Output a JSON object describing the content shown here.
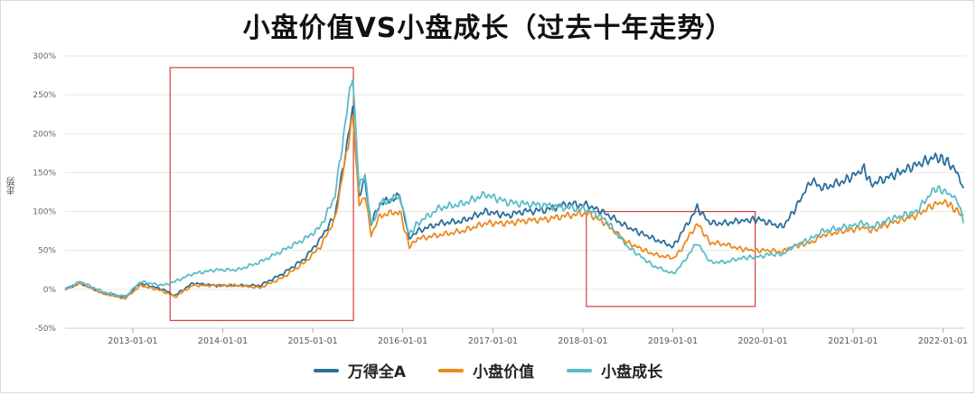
{
  "chart_data": {
    "type": "line",
    "title": "小盘价值VS小盘成长（过去十年走势）",
    "ylabel": "走势",
    "xlabel": "",
    "ylim": [
      -50,
      300
    ],
    "yticks": [
      -50,
      0,
      50,
      100,
      150,
      200,
      250,
      300
    ],
    "ytick_labels": [
      "-50%",
      "0%",
      "50%",
      "100%",
      "150%",
      "200%",
      "250%",
      "300%"
    ],
    "xticks": [
      "2013-01-01",
      "2014-01-01",
      "2015-01-01",
      "2016-01-01",
      "2017-01-01",
      "2018-01-01",
      "2019-01-01",
      "2020-01-01",
      "2021-01-01",
      "2022-01-01"
    ],
    "xlim": [
      "2012-04-01",
      "2022-04-01"
    ],
    "grid": true,
    "legend_position": "bottom",
    "highlight_boxes": [
      {
        "x": [
          "2013-06-01",
          "2015-06-15"
        ],
        "y": [
          -40,
          285
        ]
      },
      {
        "x": [
          "2018-01-15",
          "2019-12-01"
        ],
        "y": [
          -22,
          100
        ]
      }
    ],
    "series": [
      {
        "name": "万得全A",
        "color": "#2a6e9c",
        "x": [
          "2012-04-01",
          "2012-06-01",
          "2012-09-01",
          "2012-12-01",
          "2013-02-01",
          "2013-05-01",
          "2013-06-20",
          "2013-09-01",
          "2013-12-01",
          "2014-03-01",
          "2014-06-01",
          "2014-09-01",
          "2014-12-01",
          "2015-02-01",
          "2015-04-01",
          "2015-06-12",
          "2015-07-08",
          "2015-08-01",
          "2015-08-26",
          "2015-10-01",
          "2015-12-20",
          "2016-01-28",
          "2016-03-01",
          "2016-06-01",
          "2016-09-01",
          "2016-12-01",
          "2017-03-01",
          "2017-05-01",
          "2017-08-01",
          "2017-11-01",
          "2018-01-20",
          "2018-04-01",
          "2018-07-01",
          "2018-10-15",
          "2019-01-03",
          "2019-02-01",
          "2019-04-10",
          "2019-06-01",
          "2019-08-01",
          "2019-10-01",
          "2019-12-15",
          "2020-02-01",
          "2020-03-20",
          "2020-05-01",
          "2020-07-15",
          "2020-09-01",
          "2020-12-01",
          "2021-02-15",
          "2021-03-15",
          "2021-06-01",
          "2021-09-15",
          "2021-12-01",
          "2022-01-15",
          "2022-03-01",
          "2022-03-25"
        ],
        "values": [
          0,
          8,
          -5,
          -10,
          8,
          0,
          -8,
          8,
          5,
          5,
          5,
          20,
          40,
          65,
          95,
          230,
          120,
          140,
          85,
          110,
          120,
          65,
          75,
          85,
          88,
          100,
          95,
          100,
          102,
          110,
          108,
          98,
          80,
          65,
          55,
          70,
          105,
          85,
          85,
          88,
          90,
          85,
          80,
          98,
          140,
          130,
          140,
          155,
          135,
          145,
          160,
          170,
          165,
          150,
          130
        ]
      },
      {
        "name": "小盘价值",
        "color": "#ec8a1e",
        "x": [
          "2012-04-01",
          "2012-06-01",
          "2012-09-01",
          "2012-12-01",
          "2013-02-01",
          "2013-05-01",
          "2013-06-20",
          "2013-09-01",
          "2013-12-01",
          "2014-03-01",
          "2014-06-01",
          "2014-09-01",
          "2014-12-01",
          "2015-02-01",
          "2015-04-01",
          "2015-06-12",
          "2015-07-08",
          "2015-08-01",
          "2015-08-26",
          "2015-10-01",
          "2015-12-20",
          "2016-01-28",
          "2016-03-01",
          "2016-06-01",
          "2016-09-01",
          "2016-12-01",
          "2017-03-01",
          "2017-05-01",
          "2017-08-01",
          "2017-11-01",
          "2018-01-20",
          "2018-04-01",
          "2018-07-01",
          "2018-10-15",
          "2019-01-03",
          "2019-02-01",
          "2019-04-10",
          "2019-06-01",
          "2019-08-01",
          "2019-10-01",
          "2019-12-15",
          "2020-02-01",
          "2020-03-20",
          "2020-05-01",
          "2020-07-15",
          "2020-09-01",
          "2020-12-01",
          "2021-02-15",
          "2021-03-15",
          "2021-06-01",
          "2021-09-15",
          "2021-12-01",
          "2022-01-15",
          "2022-03-01",
          "2022-03-25"
        ],
        "values": [
          0,
          8,
          -5,
          -12,
          5,
          -2,
          -10,
          5,
          5,
          5,
          2,
          15,
          35,
          55,
          90,
          222,
          110,
          120,
          70,
          95,
          100,
          55,
          65,
          70,
          75,
          85,
          85,
          88,
          90,
          95,
          98,
          85,
          60,
          45,
          40,
          50,
          85,
          60,
          58,
          52,
          50,
          50,
          48,
          55,
          60,
          70,
          75,
          80,
          75,
          85,
          95,
          110,
          112,
          100,
          95
        ]
      },
      {
        "name": "小盘成长",
        "color": "#5bbcc6",
        "x": [
          "2012-04-01",
          "2012-06-01",
          "2012-09-01",
          "2012-12-01",
          "2013-02-01",
          "2013-05-01",
          "2013-06-20",
          "2013-09-01",
          "2013-12-01",
          "2014-03-01",
          "2014-06-01",
          "2014-09-01",
          "2014-12-01",
          "2015-02-01",
          "2015-04-01",
          "2015-06-12",
          "2015-07-08",
          "2015-08-01",
          "2015-08-26",
          "2015-10-01",
          "2015-12-20",
          "2016-01-28",
          "2016-03-01",
          "2016-06-01",
          "2016-09-01",
          "2016-12-01",
          "2017-03-01",
          "2017-05-01",
          "2017-08-01",
          "2017-11-01",
          "2018-01-20",
          "2018-04-01",
          "2018-07-01",
          "2018-10-15",
          "2019-01-03",
          "2019-02-01",
          "2019-04-10",
          "2019-06-01",
          "2019-08-01",
          "2019-10-01",
          "2019-12-15",
          "2020-02-01",
          "2020-03-20",
          "2020-05-01",
          "2020-07-15",
          "2020-09-01",
          "2020-12-01",
          "2021-02-15",
          "2021-03-15",
          "2021-06-01",
          "2021-09-15",
          "2021-12-01",
          "2022-01-15",
          "2022-03-01",
          "2022-03-25"
        ],
        "values": [
          0,
          10,
          -3,
          -10,
          10,
          5,
          10,
          20,
          25,
          25,
          35,
          50,
          65,
          80,
          120,
          280,
          130,
          150,
          80,
          110,
          120,
          70,
          85,
          105,
          110,
          122,
          112,
          110,
          108,
          105,
          102,
          90,
          55,
          30,
          20,
          30,
          60,
          35,
          35,
          40,
          42,
          45,
          45,
          55,
          65,
          75,
          80,
          85,
          80,
          90,
          100,
          130,
          125,
          115,
          85
        ]
      }
    ]
  }
}
